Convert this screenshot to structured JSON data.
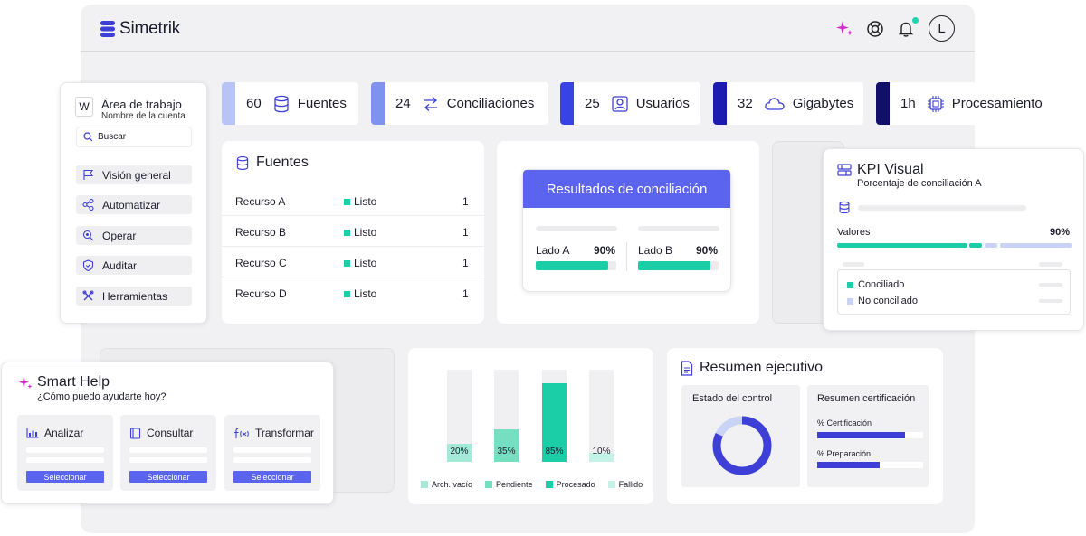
{
  "app": {
    "logo_text": "Simetrik",
    "avatar_initial": "L",
    "icons": [
      "sparkle-icon",
      "lifebuoy-icon",
      "bell-icon"
    ],
    "colors": {
      "accent": "#5b64ee",
      "teal": "#1ccea8",
      "navy": "#14147a"
    }
  },
  "sidebar": {
    "workspace_initial": "W",
    "workspace_title": "Área de trabajo",
    "workspace_subtitle": "Nombre de la cuenta",
    "search_placeholder": "Buscar",
    "items": [
      {
        "label": "Visión general",
        "icon": "flag-icon"
      },
      {
        "label": "Automatizar",
        "icon": "share-nodes-icon"
      },
      {
        "label": "Operar",
        "icon": "magnifier-icon"
      },
      {
        "label": "Auditar",
        "icon": "shield-icon"
      },
      {
        "label": "Herramientas",
        "icon": "tools-icon"
      }
    ]
  },
  "stats": [
    {
      "value": "60",
      "label": "Fuentes",
      "icon": "database-icon",
      "color": "#b8c4f5"
    },
    {
      "value": "24",
      "label": "Conciliaciones",
      "icon": "arrows-icon",
      "color": "#7f93ee"
    },
    {
      "value": "25",
      "label": "Usuarios",
      "icon": "user-icon",
      "color": "#3943e4"
    },
    {
      "value": "32",
      "label": "Gigabytes",
      "icon": "cloud-icon",
      "color": "#1c1cb0"
    },
    {
      "value": "1h",
      "label": "Procesamiento",
      "icon": "chip-icon",
      "color": "#10106a"
    }
  ],
  "fuentes": {
    "title": "Fuentes",
    "rows": [
      {
        "name": "Recurso A",
        "status": "Listo",
        "count": "1"
      },
      {
        "name": "Recurso B",
        "status": "Listo",
        "count": "1"
      },
      {
        "name": "Recurso C",
        "status": "Listo",
        "count": "1"
      },
      {
        "name": "Recurso D",
        "status": "Listo",
        "count": "1"
      }
    ]
  },
  "resultados": {
    "title": "Resultados de conciliación",
    "side_a_label": "Lado A",
    "side_a_value": "90%",
    "side_a_fraction": 0.9,
    "side_b_label": "Lado B",
    "side_b_value": "90%",
    "side_b_fraction": 0.9
  },
  "kpi": {
    "title": "KPI Visual",
    "subtitle": "Porcentaje de conciliación A",
    "values_label": "Valores",
    "values_percent": "90%",
    "legend_conciliado": "Conciliado",
    "legend_no_conciliado": "No conciliado"
  },
  "smart_help": {
    "title": "Smart Help",
    "subtitle": "¿Cómo puedo ayudarte hoy?",
    "cards": [
      {
        "title": "Analizar",
        "icon": "chart-icon",
        "button": "Seleccionar"
      },
      {
        "title": "Consultar",
        "icon": "book-icon",
        "button": "Seleccionar"
      },
      {
        "title": "Transformar",
        "icon": "function-icon",
        "button": "Seleccionar"
      }
    ]
  },
  "chart_data": {
    "type": "bar",
    "categories": [
      "Arch. vacío",
      "Pendiente",
      "Procesado",
      "Fallido"
    ],
    "values": [
      20,
      35,
      85,
      10
    ],
    "value_labels": [
      "20%",
      "35%",
      "85%",
      "10%"
    ],
    "colors": [
      "#a3ead8",
      "#77dfc1",
      "#1ccea8",
      "#c4f2e6"
    ],
    "ylim": [
      0,
      100
    ],
    "grid": false,
    "legend": "bottom"
  },
  "resumen": {
    "title": "Resumen ejecutivo",
    "control_title": "Estado del control",
    "cert_title": "Resumen certificación",
    "cert_label": "% Certificación",
    "cert_fraction": 0.83,
    "prep_label": "% Preparación",
    "prep_fraction": 0.59,
    "donut_fraction": 0.82
  }
}
